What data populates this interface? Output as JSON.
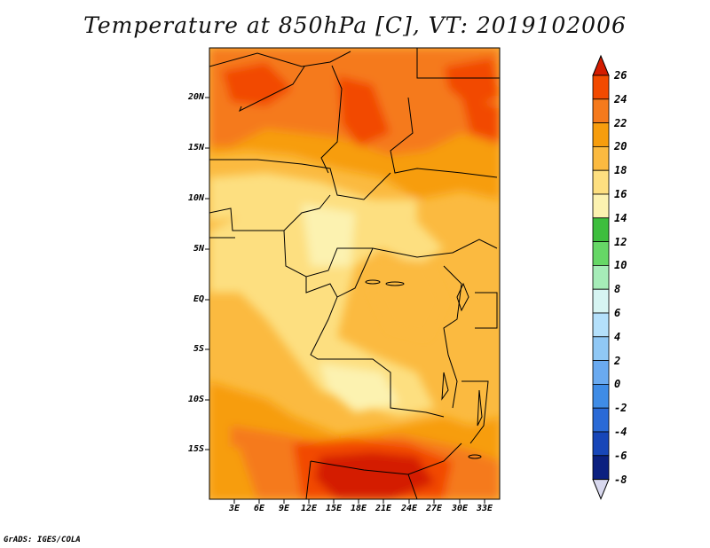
{
  "title": "Temperature at 850hPa [C], VT: 2019102006",
  "credit": "GrADS: IGES/COLA",
  "map": {
    "lat_labels": [
      "20N",
      "15N",
      "10N",
      "5N",
      "EQ",
      "5S",
      "10S",
      "15S"
    ],
    "lon_labels": [
      "3E",
      "6E",
      "9E",
      "12E",
      "15E",
      "18E",
      "21E",
      "24E",
      "27E",
      "30E",
      "33E"
    ]
  },
  "colorbar": {
    "labels": [
      "26",
      "24",
      "22",
      "20",
      "18",
      "16",
      "14",
      "12",
      "10",
      "8",
      "6",
      "4",
      "2",
      "0",
      "-2",
      "-4",
      "-6",
      "-8"
    ],
    "colors": [
      "#d41c00",
      "#f24a00",
      "#f57a1c",
      "#f79d0d",
      "#fbba40",
      "#fddf80",
      "#fcf2b0",
      "#3dbe3d",
      "#66d766",
      "#a6ecb8",
      "#d6f4f2",
      "#b4e0fb",
      "#90c8f5",
      "#6aaaf0",
      "#3f8ce6",
      "#2a6ad6",
      "#1746b8",
      "#0b2080",
      "#d8d8ee"
    ]
  }
}
